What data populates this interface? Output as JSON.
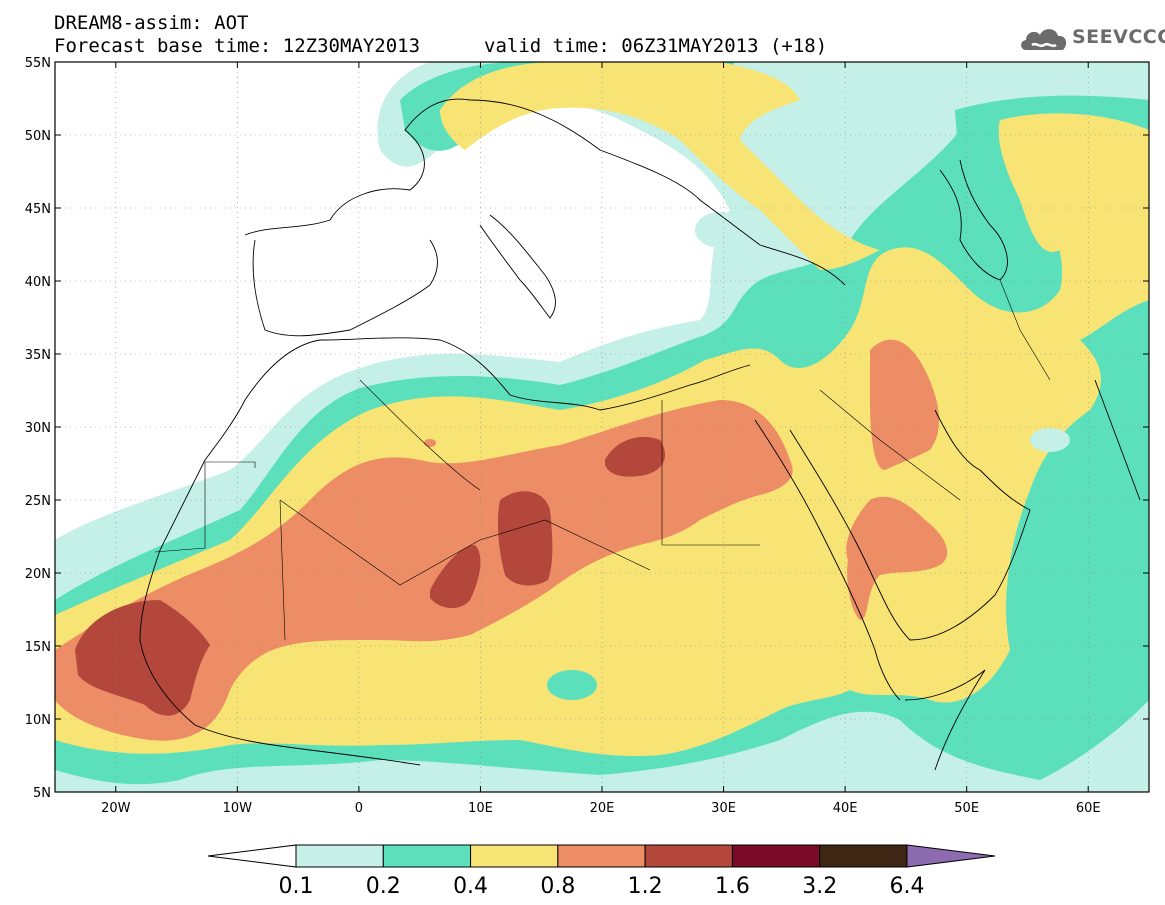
{
  "header": {
    "line1": "DREAM8-assim: AOT",
    "base_time": "Forecast base time: 12Z30MAY2013",
    "valid_time": "valid time: 06Z31MAY2013 (+18)"
  },
  "logo": {
    "text": "SEEVCCC",
    "icon": "cloud-logo-icon"
  },
  "map": {
    "extent": {
      "lon_min": -25,
      "lon_max": 65,
      "lat_min": 5,
      "lat_max": 55
    },
    "lat_labels": [
      {
        "lat": 55,
        "label": "55N"
      },
      {
        "lat": 50,
        "label": "50N"
      },
      {
        "lat": 45,
        "label": "45N"
      },
      {
        "lat": 40,
        "label": "40N"
      },
      {
        "lat": 35,
        "label": "35N"
      },
      {
        "lat": 30,
        "label": "30N"
      },
      {
        "lat": 25,
        "label": "25N"
      },
      {
        "lat": 20,
        "label": "20N"
      },
      {
        "lat": 15,
        "label": "15N"
      },
      {
        "lat": 10,
        "label": "10N"
      },
      {
        "lat": 5,
        "label": "5N"
      }
    ],
    "lon_labels": [
      {
        "lon": -20,
        "label": "20W"
      },
      {
        "lon": -10,
        "label": "10W"
      },
      {
        "lon": 0,
        "label": "0"
      },
      {
        "lon": 10,
        "label": "10E"
      },
      {
        "lon": 20,
        "label": "20E"
      },
      {
        "lon": 30,
        "label": "30E"
      },
      {
        "lon": 40,
        "label": "40E"
      },
      {
        "lon": 50,
        "label": "50E"
      },
      {
        "lon": 60,
        "label": "60E"
      }
    ]
  },
  "colorbar": {
    "levels": [
      "0.1",
      "0.2",
      "0.4",
      "0.8",
      "1.2",
      "1.6",
      "3.2",
      "6.4"
    ],
    "colors": [
      "#ffffff",
      "#c4f0e8",
      "#5ce0bc",
      "#f8e475",
      "#ec8d66",
      "#b4473b",
      "#7a0a25",
      "#3e2514",
      "#8c6bb0"
    ]
  }
}
